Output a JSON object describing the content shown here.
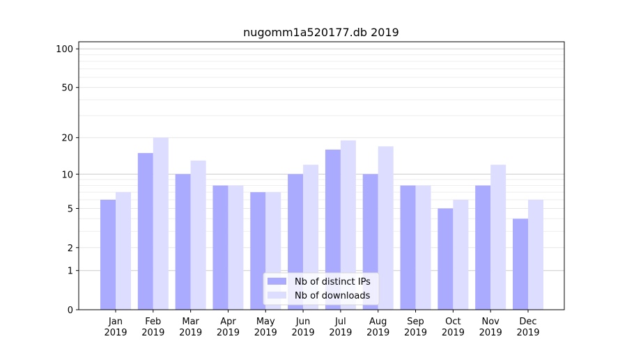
{
  "chart_data": {
    "type": "bar",
    "title": "nugomm1a520177.db 2019",
    "xlabel": "",
    "ylabel": "",
    "yscale": "log(1+y)",
    "ylim": [
      0,
      113
    ],
    "yticks": [
      0,
      1,
      2,
      5,
      10,
      20,
      50,
      100
    ],
    "grid": true,
    "legend_placement": "bottom-center",
    "categories": [
      "Jan\n2019",
      "Feb\n2019",
      "Mar\n2019",
      "Apr\n2019",
      "May\n2019",
      "Jun\n2019",
      "Jul\n2019",
      "Aug\n2019",
      "Sep\n2019",
      "Oct\n2019",
      "Nov\n2019",
      "Dec\n2019"
    ],
    "series": [
      {
        "name": "Nb of distinct IPs",
        "color": "#aaaaff",
        "values": [
          6,
          15,
          10,
          8,
          7,
          10,
          16,
          10,
          8,
          5,
          8,
          4
        ]
      },
      {
        "name": "Nb of downloads",
        "color": "#ddddff",
        "values": [
          7,
          20,
          13,
          8,
          7,
          12,
          19,
          17,
          8,
          6,
          12,
          6
        ]
      }
    ]
  }
}
